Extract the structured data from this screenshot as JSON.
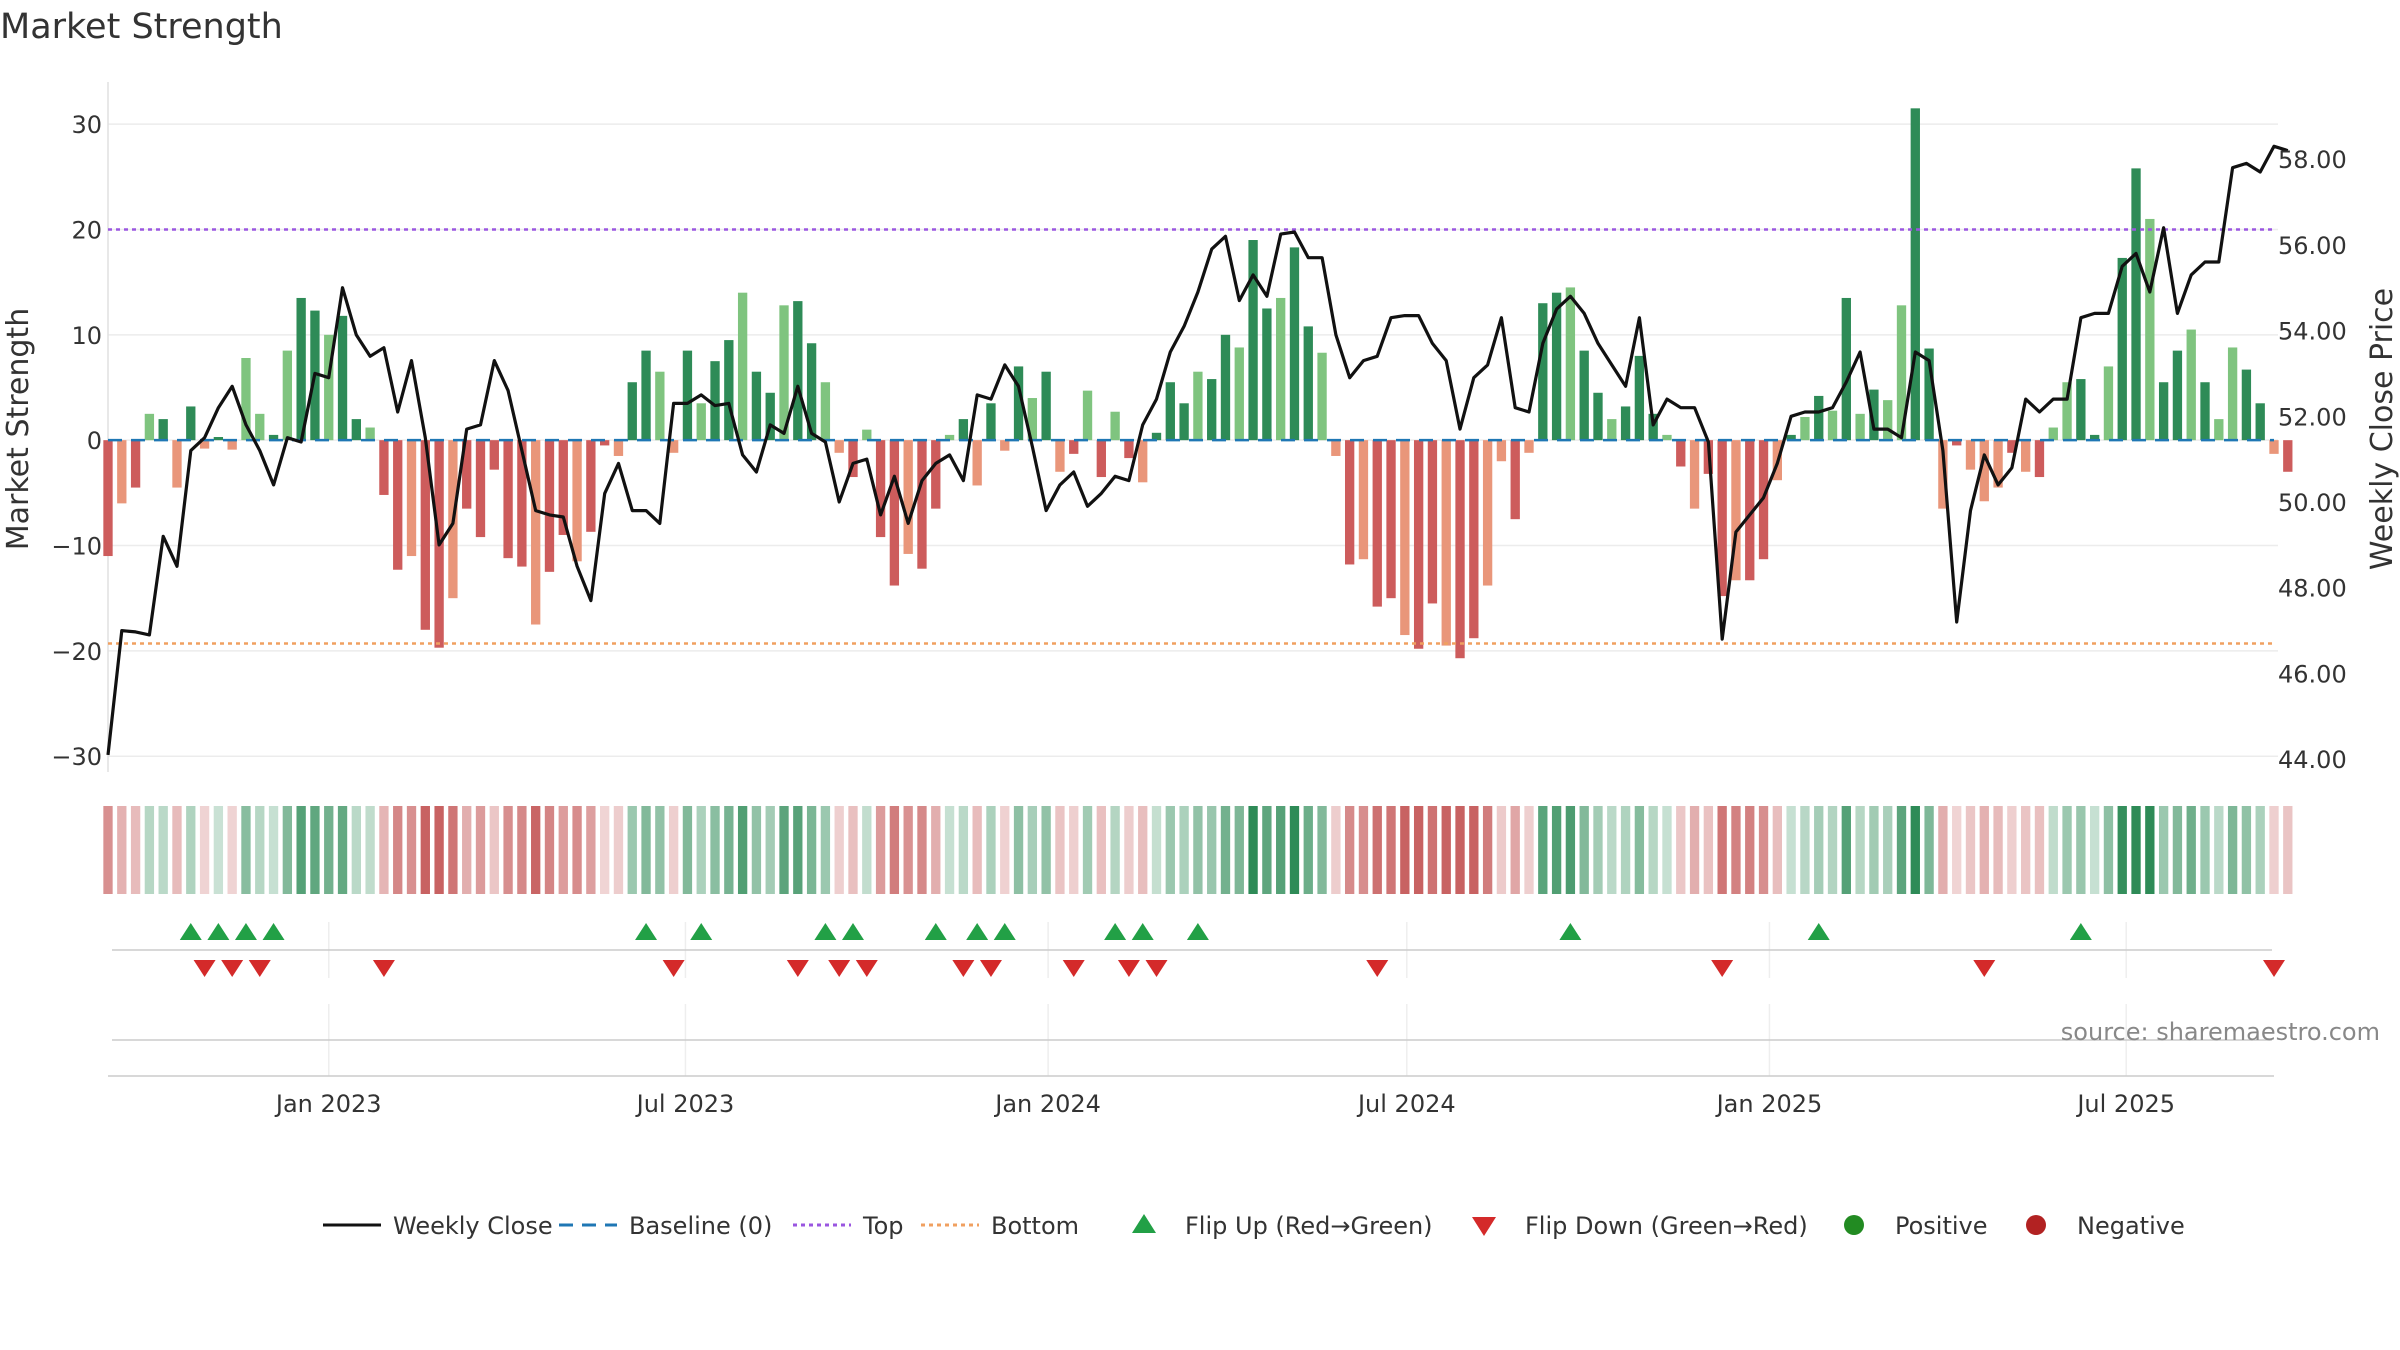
{
  "chart_data": {
    "type": "bar",
    "title": "Market Strength",
    "ylabel_left": "Market Strength",
    "ylabel_right": "Weekly Close Price",
    "ylim_left": [
      -31.5,
      34.0
    ],
    "ylim_right": [
      43.7,
      59.8
    ],
    "yticks_left": [
      30,
      20,
      10,
      0,
      -10,
      -20,
      -30
    ],
    "yticks_right": [
      58,
      56,
      54,
      52,
      50,
      48,
      46,
      44
    ],
    "x_range": [
      "2022-09-11",
      "2025-09-14"
    ],
    "x_ticks": [
      {
        "date": "2023-01-01",
        "label": "Jan 2023"
      },
      {
        "date": "2023-07-01",
        "label": "Jul 2023"
      },
      {
        "date": "2024-01-01",
        "label": "Jan 2024"
      },
      {
        "date": "2024-07-01",
        "label": "Jul 2024"
      },
      {
        "date": "2025-01-01",
        "label": "Jan 2025"
      },
      {
        "date": "2025-07-01",
        "label": "Jul 2025"
      }
    ],
    "top_line": 20,
    "bottom_line": -19.3,
    "start_date": "2022-09-11",
    "strength": [
      -11,
      -6,
      -4.5,
      2.5,
      2,
      -4.5,
      3.2,
      -0.8,
      0.3,
      -0.9,
      7.8,
      2.5,
      0.5,
      8.5,
      13.5,
      12.3,
      10,
      11.8,
      2,
      1.2,
      -5.2,
      -12.3,
      -11,
      -18,
      -19.7,
      -15,
      -6.5,
      -9.2,
      -2.8,
      -11.2,
      -12,
      -17.5,
      -12.5,
      -9,
      -11.5,
      -8.7,
      -0.5,
      -1.5,
      5.5,
      8.5,
      6.5,
      -1.2,
      8.5,
      3.5,
      7.5,
      9.5,
      14,
      6.5,
      4.5,
      12.8,
      13.2,
      9.2,
      5.5,
      -1.2,
      -3.5,
      1,
      -9.2,
      -13.8,
      -10.8,
      -12.2,
      -6.5,
      0.5,
      2,
      -4.3,
      3.5,
      -1,
      7,
      4,
      6.5,
      -3,
      -1.3,
      4.7,
      -3.5,
      2.7,
      -1.7,
      -4,
      0.7,
      5.5,
      3.5,
      6.5,
      5.8,
      10,
      8.8,
      19,
      12.5,
      13.5,
      18.3,
      10.8,
      8.3,
      -1.5,
      -11.8,
      -11.3,
      -15.8,
      -15,
      -18.5,
      -19.8,
      -15.5,
      -19.5,
      -20.7,
      -18.8,
      -13.8,
      -2,
      -7.5,
      -1.2,
      13,
      14,
      14.5,
      8.5,
      4.5,
      2,
      3.2,
      8,
      2.5,
      0.5,
      -2.5,
      -6.5,
      -3.2,
      -14.8,
      -13.3,
      -13.3,
      -11.3,
      -3.8,
      0.5,
      2.2,
      4.2,
      2.8,
      13.5,
      2.5,
      4.8,
      3.8,
      12.8,
      31.5,
      8.7,
      -6.5,
      -0.5,
      -2.8,
      -5.8,
      -4.5,
      -1.2,
      -3,
      -3.5,
      1.2,
      5.5,
      5.8,
      0.5,
      7,
      17.3,
      25.8,
      21,
      5.5,
      8.5,
      10.5,
      5.5,
      2,
      8.8,
      6.7,
      3.5,
      -1.3,
      -3
    ],
    "weekly_close": [
      44.1,
      47,
      46.97,
      46.9,
      49.2,
      48.5,
      51.2,
      51.5,
      52.2,
      52.7,
      51.8,
      51.2,
      50.4,
      51.5,
      51.4,
      53,
      52.9,
      55,
      53.9,
      53.4,
      53.6,
      52.1,
      53.3,
      51.5,
      49,
      49.5,
      51.7,
      51.8,
      53.3,
      52.6,
      51.2,
      49.8,
      49.7,
      49.65,
      48.5,
      47.7,
      50.2,
      50.9,
      49.8,
      49.8,
      49.5,
      52.3,
      52.3,
      52.5,
      52.25,
      52.3,
      51.1,
      50.7,
      51.8,
      51.6,
      52.7,
      51.6,
      51.4,
      50,
      50.9,
      51.0,
      49.7,
      50.6,
      49.5,
      50.5,
      50.9,
      51.1,
      50.5,
      52.5,
      52.4,
      53.2,
      52.7,
      51.3,
      49.8,
      50.4,
      50.7,
      49.9,
      50.2,
      50.6,
      50.5,
      51.8,
      52.4,
      53.5,
      54.1,
      54.9,
      55.9,
      56.2,
      54.7,
      55.3,
      54.8,
      56.25,
      56.3,
      55.7,
      55.7,
      53.9,
      52.9,
      53.3,
      53.4,
      54.3,
      54.35,
      54.35,
      53.7,
      53.3,
      51.7,
      52.9,
      53.2,
      54.3,
      52.2,
      52.1,
      53.7,
      54.5,
      54.8,
      54.4,
      53.7,
      53.2,
      52.7,
      54.3,
      51.8,
      52.4,
      52.2,
      52.2,
      51.4,
      46.8,
      49.3,
      49.7,
      50.1,
      50.9,
      52,
      52.1,
      52.1,
      52.2,
      52.8,
      53.5,
      51.7,
      51.7,
      51.5,
      53.5,
      53.3,
      51.2,
      47.2,
      49.8,
      51.1,
      50.4,
      50.8,
      52.4,
      52.1,
      52.4,
      52.4,
      54.3,
      54.4,
      54.4,
      55.5,
      55.8,
      54.9,
      56.4,
      54.4,
      55.3,
      55.6,
      55.6,
      57.8,
      57.9,
      57.7,
      58.3,
      58.2
    ],
    "flip_up": [
      "2022-10-23",
      "2022-11-06",
      "2022-11-20",
      "2022-12-04",
      "2023-06-11",
      "2023-07-09",
      "2023-09-10",
      "2023-09-24",
      "2023-11-05",
      "2023-11-26",
      "2023-12-10",
      "2024-02-04",
      "2024-02-18",
      "2024-03-17",
      "2024-09-22",
      "2025-01-26",
      "2025-06-08"
    ],
    "flip_down": [
      "2022-10-30",
      "2022-11-13",
      "2022-11-27",
      "2023-01-29",
      "2023-06-25",
      "2023-08-27",
      "2023-09-17",
      "2023-10-01",
      "2023-11-19",
      "2023-12-03",
      "2024-01-14",
      "2024-02-11",
      "2024-02-25",
      "2024-06-16",
      "2024-12-08",
      "2025-04-20",
      "2025-09-14"
    ],
    "legend": [
      {
        "label": "Weekly Close",
        "kind": "line-solid",
        "color": "#111111"
      },
      {
        "label": "Baseline (0)",
        "kind": "line-dash",
        "color": "#1f77b4"
      },
      {
        "label": "Top",
        "kind": "line-dot",
        "color": "#9a56e0"
      },
      {
        "label": "Bottom",
        "kind": "line-dot",
        "color": "#f0a060"
      },
      {
        "label": "Flip Up (Red→Green)",
        "kind": "triangle-up",
        "color": "#22a046"
      },
      {
        "label": "Flip Down (Green→Red)",
        "kind": "triangle-down",
        "color": "#d42a2a"
      },
      {
        "label": "Positive",
        "kind": "circle",
        "color": "#228b22"
      },
      {
        "label": "Negative",
        "kind": "circle",
        "color": "#b22222"
      }
    ],
    "source": "source: sharemaestro.com",
    "colors": {
      "positive_strong": "#2e8b57",
      "positive_weak": "#7fc47f",
      "negative_strong": "#cd5c5c",
      "negative_weak": "#e9967a",
      "close_line": "#111111",
      "baseline": "#1f77b4",
      "top": "#9a56e0",
      "bottom": "#f0a060"
    }
  }
}
